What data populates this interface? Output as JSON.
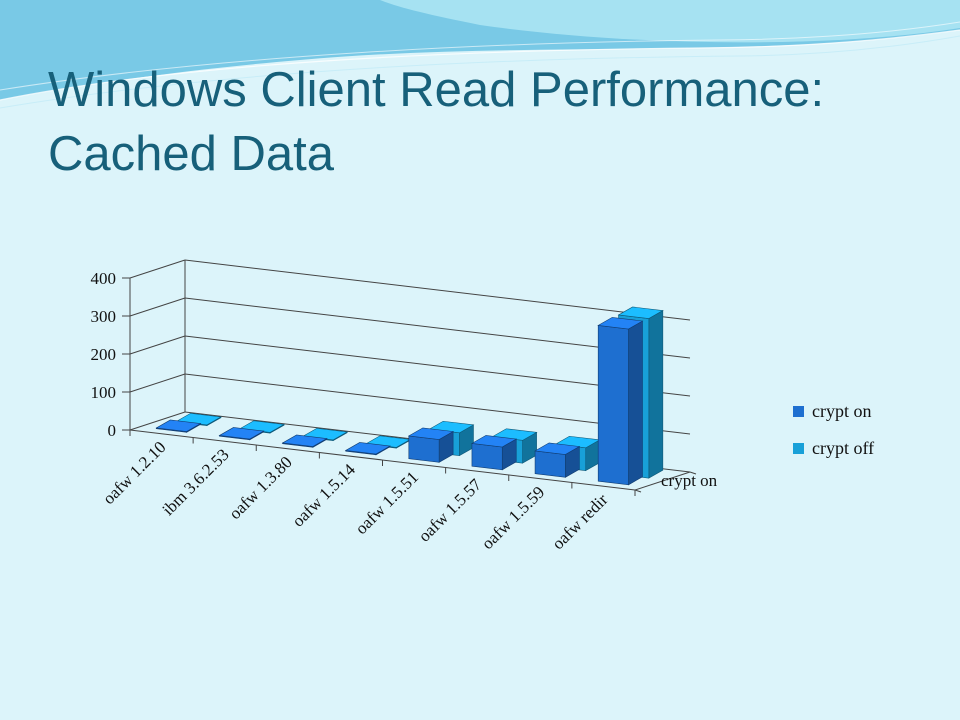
{
  "slide": {
    "title_line1": "Windows Client Read Performance:",
    "title_line2": "Cached Data"
  },
  "colors": {
    "background": "#dcf4fa",
    "title": "#17607a",
    "crypt_on": "#1e6fd0",
    "crypt_off": "#18a0d8"
  },
  "chart_data": {
    "type": "bar",
    "style": "3d-clustered-column",
    "categories": [
      "oafw 1.2.10",
      "ibm 3.6.2.53",
      "oafw 1.3.80",
      "oafw 1.5.14",
      "oafw 1.5.51",
      "oafw 1.5.57",
      "oafw 1.5.59",
      "oafw redir"
    ],
    "series": [
      {
        "name": "crypt on",
        "values": [
          2,
          2,
          2,
          2,
          60,
          60,
          60,
          410
        ]
      },
      {
        "name": "crypt off",
        "values": [
          2,
          2,
          2,
          2,
          60,
          60,
          60,
          420
        ]
      }
    ],
    "depth_axis_label": "crypt on",
    "y_ticks": [
      "0",
      "100",
      "200",
      "300",
      "400"
    ],
    "ylim": [
      0,
      400
    ],
    "grid": true,
    "legend_position": "right"
  }
}
